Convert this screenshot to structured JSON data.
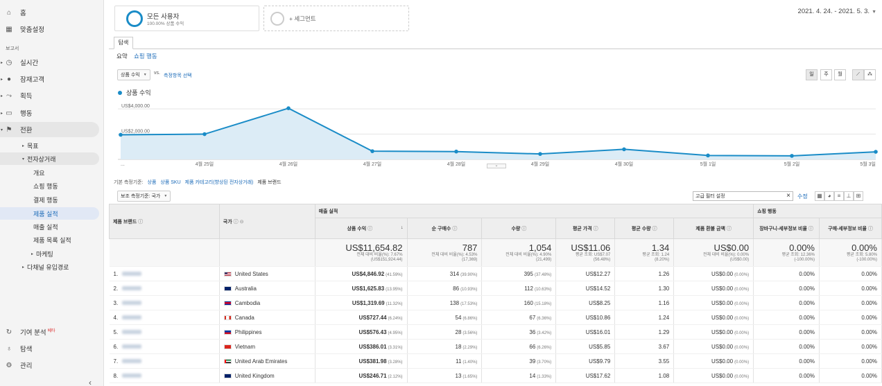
{
  "sidebar": {
    "home": "홈",
    "custom": "맞춤설정",
    "reports_label": "보고서",
    "realtime": "실시간",
    "audience": "잠재고객",
    "acquisition": "획득",
    "behavior": "행동",
    "conversions": "전환",
    "goals": "목표",
    "ecommerce": "전자상거래",
    "overview": "개요",
    "shopping_behavior": "쇼핑 행동",
    "checkout_behavior": "결제 행동",
    "product_performance": "제품 실적",
    "sales_performance": "매출 실적",
    "product_list_performance": "제품 목록 실적",
    "marketing": "마케팅",
    "multi_channel": "다채널 유입경로",
    "attribution": "기여 분석",
    "attribution_badge": "베타",
    "discover": "탐색",
    "admin": "관리"
  },
  "segment": {
    "title": "모든 사용자",
    "sub": "100.00% 상품 수익",
    "add": "+ 세그먼트"
  },
  "date_range": "2021. 4. 24. - 2021. 5. 3.",
  "tab": "탐색",
  "subtabs": {
    "summary": "요약",
    "shopping": "쇼핑 행동"
  },
  "chart_controls": {
    "metric": "상품 수익",
    "vs": "vs.",
    "pick_metric": "측정항목 선택",
    "periods": [
      "일",
      "주",
      "월"
    ]
  },
  "chart_data": {
    "type": "line",
    "series": [
      {
        "name": "상품 수익",
        "values": [
          1950,
          2000,
          4050,
          650,
          620,
          430,
          800,
          310,
          280,
          600
        ]
      }
    ],
    "x": [
      "4월 24일",
      "4월 25일",
      "4월 26일",
      "4월 27일",
      "4월 28일",
      "4월 29일",
      "4월 30일",
      "5월 1일",
      "5월 2일",
      "5월 3일"
    ],
    "x_tick_labels": [
      "...",
      "4월 25일",
      "4월 26일",
      "4월 27일",
      "4월 28일",
      "4월 29일",
      "4월 30일",
      "5월 1일",
      "5월 2일",
      "5월 3일"
    ],
    "y_tick_labels": [
      "US$4,000.00",
      "US$2,000.00"
    ],
    "ylim": [
      0,
      4500
    ],
    "color": "#1a8cc7",
    "area_color": "#dcecf6"
  },
  "dims": {
    "label": "기본 측정기준:",
    "links": [
      "상품",
      "상품 SKU",
      "제품 카테고리(향상된 전자상거래)"
    ],
    "current": "제품 브랜드"
  },
  "secondary_dim": "보조 측정기준: 국가",
  "filter": {
    "value": "고급 필터 설정",
    "edit": "수정"
  },
  "table": {
    "group_sales": "매출 실적",
    "group_shopping": "쇼핑 행동",
    "col_brand": "제품 브랜드",
    "col_country": "국가",
    "cols": [
      "상품 수익",
      "순 구매수",
      "수량",
      "평균 가격",
      "평균 수량",
      "제품 환불 금액",
      "장바구니-세부정보 비율",
      "구매-세부정보 비율"
    ],
    "totals": [
      {
        "main": "US$11,654.82",
        "sub1": "전체 대비 비율(%): 7.67%",
        "sub2": "(US$151,924.44)"
      },
      {
        "main": "787",
        "sub1": "전체 대비 비율(%): 4.53%",
        "sub2": "(17,369)"
      },
      {
        "main": "1,054",
        "sub1": "전체 대비 비율(%): 4.90%",
        "sub2": "(21,499)"
      },
      {
        "main": "US$11.06",
        "sub1": "평균 조회: US$7.07",
        "sub2": "(56.48%)"
      },
      {
        "main": "1.34",
        "sub1": "평균 조회: 1.24",
        "sub2": "(8.20%)"
      },
      {
        "main": "US$0.00",
        "sub1": "전체 대비 비율(%): 0.00%",
        "sub2": "(US$0.00)"
      },
      {
        "main": "0.00%",
        "sub1": "평균 조회: 12.36%",
        "sub2": "(-100.00%)"
      },
      {
        "main": "0.00%",
        "sub1": "평균 조회: 5.80%",
        "sub2": "(-100.00%)"
      }
    ],
    "rows": [
      {
        "n": "1.",
        "country": "United States",
        "flag": "us",
        "rev": "US$4,846.92",
        "rev_p": "(41.59%)",
        "pur": "314",
        "pur_p": "(39.90%)",
        "qty": "395",
        "qty_p": "(37.48%)",
        "price": "US$12.27",
        "avgq": "1.26",
        "ref": "US$0.00",
        "ref_p": "(0.00%)",
        "cart": "0.00%",
        "buy": "0.00%"
      },
      {
        "n": "2.",
        "country": "Australia",
        "flag": "au",
        "rev": "US$1,625.83",
        "rev_p": "(13.95%)",
        "pur": "86",
        "pur_p": "(10.93%)",
        "qty": "112",
        "qty_p": "(10.63%)",
        "price": "US$14.52",
        "avgq": "1.30",
        "ref": "US$0.00",
        "ref_p": "(0.00%)",
        "cart": "0.00%",
        "buy": "0.00%"
      },
      {
        "n": "3.",
        "country": "Cambodia",
        "flag": "kh",
        "rev": "US$1,319.69",
        "rev_p": "(11.32%)",
        "pur": "138",
        "pur_p": "(17.53%)",
        "qty": "160",
        "qty_p": "(15.18%)",
        "price": "US$8.25",
        "avgq": "1.16",
        "ref": "US$0.00",
        "ref_p": "(0.00%)",
        "cart": "0.00%",
        "buy": "0.00%"
      },
      {
        "n": "4.",
        "country": "Canada",
        "flag": "ca",
        "rev": "US$727.44",
        "rev_p": "(6.24%)",
        "pur": "54",
        "pur_p": "(6.86%)",
        "qty": "67",
        "qty_p": "(6.36%)",
        "price": "US$10.86",
        "avgq": "1.24",
        "ref": "US$0.00",
        "ref_p": "(0.00%)",
        "cart": "0.00%",
        "buy": "0.00%"
      },
      {
        "n": "5.",
        "country": "Philippines",
        "flag": "ph",
        "rev": "US$576.43",
        "rev_p": "(4.95%)",
        "pur": "28",
        "pur_p": "(3.56%)",
        "qty": "36",
        "qty_p": "(3.42%)",
        "price": "US$16.01",
        "avgq": "1.29",
        "ref": "US$0.00",
        "ref_p": "(0.00%)",
        "cart": "0.00%",
        "buy": "0.00%"
      },
      {
        "n": "6.",
        "country": "Vietnam",
        "flag": "vn",
        "rev": "US$386.01",
        "rev_p": "(3.31%)",
        "pur": "18",
        "pur_p": "(2.29%)",
        "qty": "66",
        "qty_p": "(6.26%)",
        "price": "US$5.85",
        "avgq": "3.67",
        "ref": "US$0.00",
        "ref_p": "(0.00%)",
        "cart": "0.00%",
        "buy": "0.00%"
      },
      {
        "n": "7.",
        "country": "United Arab Emirates",
        "flag": "ae",
        "rev": "US$381.98",
        "rev_p": "(3.28%)",
        "pur": "11",
        "pur_p": "(1.40%)",
        "qty": "39",
        "qty_p": "(3.70%)",
        "price": "US$9.79",
        "avgq": "3.55",
        "ref": "US$0.00",
        "ref_p": "(0.00%)",
        "cart": "0.00%",
        "buy": "0.00%"
      },
      {
        "n": "8.",
        "country": "United Kingdom",
        "flag": "gb",
        "rev": "US$246.71",
        "rev_p": "(2.12%)",
        "pur": "13",
        "pur_p": "(1.65%)",
        "qty": "14",
        "qty_p": "(1.33%)",
        "price": "US$17.62",
        "avgq": "1.08",
        "ref": "US$0.00",
        "ref_p": "(0.00%)",
        "cart": "0.00%",
        "buy": "0.00%"
      }
    ]
  }
}
